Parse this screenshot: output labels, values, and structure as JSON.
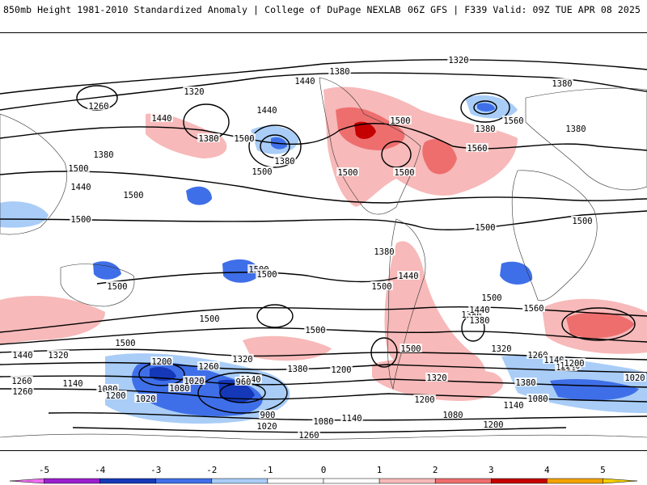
{
  "header": {
    "left_title": "850mb Height 1981-2010 Standardized Anomaly | College of DuPage NEXLAB",
    "right_title": "06Z GFS | F339 Valid: 09Z TUE APR 08 2025"
  },
  "colorbar": {
    "min": -5.5,
    "max": 5.5,
    "ticks": [
      "-5",
      "-4",
      "-3",
      "-2",
      "-1",
      "0",
      "1",
      "2",
      "3",
      "4",
      "5"
    ],
    "bins": [
      {
        "from": -5.5,
        "to": -5,
        "color": "#f06ef0"
      },
      {
        "from": -5,
        "to": -4,
        "color": "#9a1fd0"
      },
      {
        "from": -4,
        "to": -3,
        "color": "#1438b8"
      },
      {
        "from": -3,
        "to": -2,
        "color": "#3f6fe8"
      },
      {
        "from": -2,
        "to": -1,
        "color": "#a9cdf7"
      },
      {
        "from": -1,
        "to": 0,
        "color": "#ffffff"
      },
      {
        "from": 0,
        "to": 1,
        "color": "#ffffff"
      },
      {
        "from": 1,
        "to": 2,
        "color": "#f7b9b9"
      },
      {
        "from": 2,
        "to": 3,
        "color": "#ee6e6e"
      },
      {
        "from": 3,
        "to": 4,
        "color": "#c40000"
      },
      {
        "from": 4,
        "to": 5,
        "color": "#f5a200"
      },
      {
        "from": 5,
        "to": 5.5,
        "color": "#f5d000"
      }
    ]
  },
  "contour_labels": [
    "1320",
    "1380",
    "1440",
    "1260",
    "1380",
    "1500",
    "1440",
    "1380",
    "1440",
    "1380",
    "1500",
    "1500",
    "1560",
    "1440",
    "1380",
    "1500",
    "1500",
    "1500",
    "1500",
    "1500",
    "1500",
    "1320",
    "1380",
    "1380",
    "1560",
    "1500",
    "1500",
    "1380",
    "1440",
    "1380",
    "1500",
    "1500",
    "1500",
    "1500",
    "1500",
    "1560",
    "1500",
    "1440",
    "1380",
    "1320",
    "1500",
    "1440",
    "1320",
    "1260",
    "1200",
    "1260",
    "1140",
    "1320",
    "1260",
    "1200",
    "1380",
    "1140",
    "1200",
    "1080",
    "1020",
    "1080",
    "1020",
    "960",
    "900",
    "1140",
    "1200",
    "1260",
    "1380",
    "1320",
    "1200",
    "1080",
    "1020",
    "1140",
    "1140",
    "1200",
    "1260",
    "1080",
    "1140",
    "1080",
    "1200",
    "1020",
    "1500",
    "1560"
  ],
  "anomaly_colors": {
    "light_blue": "#a9cdf7",
    "blue": "#3f6fe8",
    "dark_blue": "#1438b8",
    "light_red": "#f7b9b9",
    "red": "#ee6e6e",
    "dark_red": "#c40000"
  }
}
